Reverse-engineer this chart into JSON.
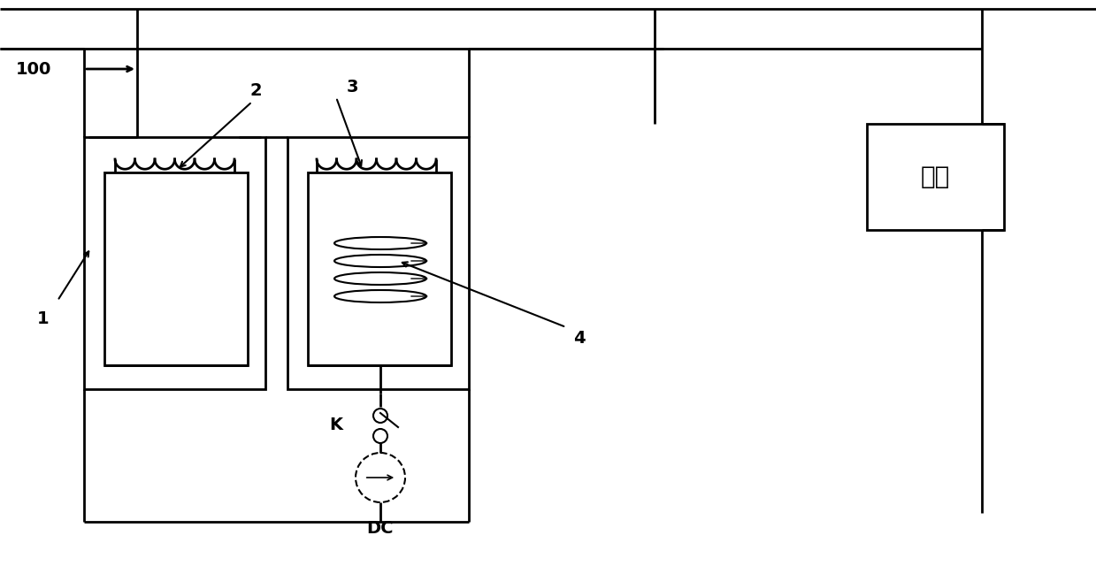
{
  "bg_color": "#ffffff",
  "line_color": "#000000",
  "figure_size": [
    12.39,
    6.4
  ],
  "dpi": 100,
  "fuzai_text": "负载"
}
